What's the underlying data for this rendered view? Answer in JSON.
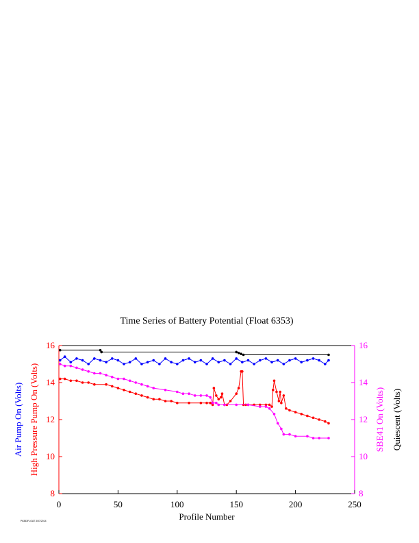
{
  "chart_data": {
    "type": "line",
    "title": "Time Series of Battery Potential (Float 6353)",
    "xlabel": "Profile Number",
    "xlim": [
      0,
      250
    ],
    "xticks": [
      0,
      50,
      100,
      150,
      200,
      250
    ],
    "ylim": [
      8,
      16
    ],
    "yticks": [
      8,
      10,
      12,
      14,
      16
    ],
    "ylabels_left": [
      {
        "text": "Air Pump On (Volts)",
        "color": "#0000ff"
      },
      {
        "text": "High Pressure Pump On (Volts)",
        "color": "#ff0000"
      }
    ],
    "ylabels_right": [
      {
        "text": "SBE41 On (Volts)",
        "color": "#ff00ff"
      },
      {
        "text": "Quiescent (Volts)",
        "color": "#000000"
      }
    ],
    "series": [
      {
        "name": "Quiescent",
        "color": "#000000",
        "x": [
          1,
          35,
          36,
          150,
          152,
          154,
          156,
          228
        ],
        "y": [
          15.75,
          15.75,
          15.65,
          15.65,
          15.6,
          15.55,
          15.5,
          15.5
        ]
      },
      {
        "name": "Air Pump On",
        "color": "#0000ff",
        "x": [
          1,
          5,
          10,
          15,
          20,
          25,
          30,
          35,
          40,
          45,
          50,
          55,
          60,
          65,
          70,
          75,
          80,
          85,
          90,
          95,
          100,
          105,
          110,
          115,
          120,
          125,
          130,
          135,
          140,
          145,
          150,
          155,
          160,
          165,
          170,
          175,
          180,
          185,
          190,
          195,
          200,
          205,
          210,
          215,
          220,
          225,
          228
        ],
        "y": [
          15.2,
          15.4,
          15.1,
          15.3,
          15.2,
          15.0,
          15.3,
          15.2,
          15.1,
          15.3,
          15.2,
          15.0,
          15.1,
          15.3,
          15.0,
          15.1,
          15.2,
          15.0,
          15.3,
          15.1,
          15.0,
          15.2,
          15.3,
          15.1,
          15.2,
          15.0,
          15.3,
          15.1,
          15.2,
          15.0,
          15.3,
          15.1,
          15.2,
          15.0,
          15.2,
          15.3,
          15.1,
          15.2,
          15.0,
          15.2,
          15.3,
          15.1,
          15.2,
          15.3,
          15.2,
          15.0,
          15.2
        ]
      },
      {
        "name": "High Pressure Pump On",
        "color": "#ff0000",
        "x": [
          1,
          5,
          10,
          15,
          20,
          25,
          30,
          40,
          45,
          50,
          55,
          60,
          65,
          70,
          75,
          80,
          85,
          90,
          95,
          100,
          110,
          120,
          125,
          128,
          130,
          131,
          133,
          135,
          137,
          138,
          140,
          142,
          145,
          150,
          152,
          154,
          155,
          156,
          158,
          160,
          165,
          170,
          175,
          178,
          180,
          181,
          182,
          184,
          186,
          187,
          188,
          190,
          192,
          195,
          200,
          205,
          210,
          215,
          220,
          225,
          228
        ],
        "y": [
          14.2,
          14.2,
          14.1,
          14.1,
          14.0,
          14.0,
          13.9,
          13.9,
          13.8,
          13.7,
          13.6,
          13.5,
          13.4,
          13.3,
          13.2,
          13.1,
          13.1,
          13.0,
          13.0,
          12.9,
          12.9,
          12.9,
          12.9,
          12.9,
          12.8,
          13.7,
          13.3,
          13.1,
          13.2,
          13.4,
          12.8,
          12.8,
          13.0,
          13.4,
          13.7,
          14.6,
          14.6,
          12.8,
          12.8,
          12.8,
          12.8,
          12.8,
          12.8,
          12.8,
          12.7,
          13.6,
          14.1,
          13.5,
          13.0,
          13.5,
          12.9,
          13.3,
          12.6,
          12.5,
          12.4,
          12.3,
          12.2,
          12.1,
          12.0,
          11.9,
          11.8
        ]
      },
      {
        "name": "SBE41 On",
        "color": "#ff00ff",
        "x": [
          1,
          5,
          10,
          15,
          20,
          25,
          30,
          35,
          40,
          45,
          50,
          55,
          60,
          65,
          70,
          75,
          80,
          90,
          100,
          105,
          110,
          115,
          120,
          125,
          128,
          130,
          133,
          135,
          140,
          150,
          160,
          170,
          175,
          178,
          182,
          185,
          188,
          190,
          195,
          200,
          210,
          215,
          220,
          228
        ],
        "y": [
          15.0,
          14.9,
          14.9,
          14.8,
          14.7,
          14.6,
          14.5,
          14.5,
          14.4,
          14.3,
          14.2,
          14.2,
          14.1,
          14.0,
          13.9,
          13.8,
          13.7,
          13.6,
          13.5,
          13.4,
          13.4,
          13.3,
          13.3,
          13.3,
          13.2,
          12.9,
          12.9,
          12.8,
          12.8,
          12.8,
          12.8,
          12.7,
          12.7,
          12.6,
          12.3,
          11.8,
          11.5,
          11.2,
          11.2,
          11.1,
          11.1,
          11.0,
          11.0,
          11.0
        ]
      }
    ],
    "footnote": "P6353FLOAT 3/07/2014"
  }
}
